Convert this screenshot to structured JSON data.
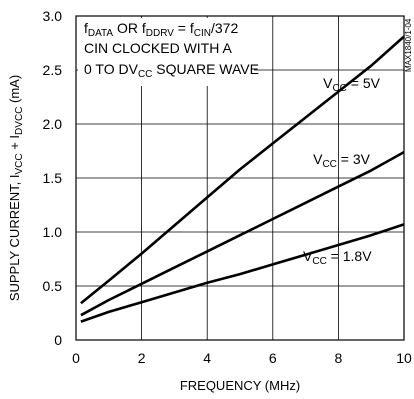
{
  "chart_data": {
    "type": "line",
    "xlabel": "FREQUENCY (MHz)",
    "ylabel_parts": [
      "SUPPLY CURRENT, I",
      "VCC",
      " + I",
      "DVCC",
      " (mA)"
    ],
    "xlim": [
      0,
      10
    ],
    "ylim": [
      0,
      3.0
    ],
    "x_ticks": [
      0,
      2,
      4,
      6,
      8,
      10
    ],
    "y_ticks": [
      0,
      0.5,
      1.0,
      1.5,
      2.0,
      2.5,
      3.0
    ],
    "x_tick_labels": [
      "0",
      "2",
      "4",
      "6",
      "8",
      "10"
    ],
    "y_tick_labels": [
      "0",
      "0.5",
      "1.0",
      "1.5",
      "2.0",
      "2.5",
      "3.0"
    ],
    "grid": true,
    "annotation": {
      "line1": [
        "f",
        "DATA",
        " OR f",
        "DDRV",
        " = f",
        "CIN",
        "/372"
      ],
      "line2": "CIN CLOCKED WITH A",
      "line3": [
        "0 TO DV",
        "CC",
        " SQUARE WAVE"
      ]
    },
    "side_tag": "MAX1840/1-04",
    "series": [
      {
        "name": "VCC = 5V",
        "label_parts": [
          "V",
          "CC",
          " = 5V"
        ],
        "x": [
          0.15,
          1,
          2,
          3,
          4,
          5,
          6,
          7,
          8,
          9,
          10
        ],
        "y": [
          0.34,
          0.55,
          0.8,
          1.06,
          1.32,
          1.58,
          1.82,
          2.06,
          2.3,
          2.54,
          2.81
        ]
      },
      {
        "name": "VCC = 3V",
        "label_parts": [
          "V",
          "CC",
          " = 3V"
        ],
        "x": [
          0.15,
          1,
          2,
          3,
          4,
          5,
          6,
          7,
          8,
          9,
          10
        ],
        "y": [
          0.23,
          0.37,
          0.52,
          0.67,
          0.82,
          0.97,
          1.12,
          1.27,
          1.42,
          1.57,
          1.74
        ]
      },
      {
        "name": "VCC = 1.8V",
        "label_parts": [
          "V",
          "CC",
          " = 1.8V"
        ],
        "x": [
          0.15,
          1,
          2,
          3,
          4,
          5,
          6,
          7,
          8,
          9,
          10
        ],
        "y": [
          0.17,
          0.26,
          0.35,
          0.44,
          0.53,
          0.61,
          0.7,
          0.79,
          0.88,
          0.97,
          1.07
        ]
      }
    ]
  }
}
